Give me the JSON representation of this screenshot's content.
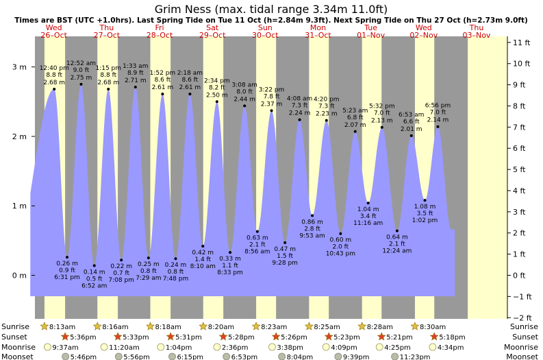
{
  "chart_data": {
    "type": "area",
    "title": "Grim Ness (max. tidal range 3.34m 11.0ft)",
    "subtitle": "Times are BST (UTC +1.0hrs). Last Spring Tide on Tue 11 Oct (h=2.84m 9.3ft). Next Spring Tide on Thu 27 Oct (h=2.73m 9.0ft)",
    "days": [
      {
        "day": "Wed",
        "date": "26–Oct"
      },
      {
        "day": "Thu",
        "date": "27–Oct"
      },
      {
        "day": "Fri",
        "date": "28–Oct"
      },
      {
        "day": "Sat",
        "date": "29–Oct"
      },
      {
        "day": "Sun",
        "date": "30–Oct"
      },
      {
        "day": "Mon",
        "date": "31–Oct"
      },
      {
        "day": "Tue",
        "date": "01–Nov"
      },
      {
        "day": "Wed",
        "date": "02–Nov"
      },
      {
        "day": "Thu",
        "date": "03–Nov"
      }
    ],
    "x_unit": "hours since 00:00 on Wed 26-Oct",
    "ylim_m": [
      -0.28,
      3.38
    ],
    "left_ticks": [
      {
        "v": 0,
        "label": "0 m"
      },
      {
        "v": 1,
        "label": "1 m"
      },
      {
        "v": 2,
        "label": "2 m"
      },
      {
        "v": 3,
        "label": "3 m"
      }
    ],
    "right_ticks": [
      {
        "ft": -2,
        "label": "−2 ft"
      },
      {
        "ft": -1,
        "label": "−1 ft"
      },
      {
        "ft": 0,
        "label": "0 ft"
      },
      {
        "ft": 1,
        "label": "1 ft"
      },
      {
        "ft": 2,
        "label": "2 ft"
      },
      {
        "ft": 3,
        "label": "3 ft"
      },
      {
        "ft": 4,
        "label": "4 ft"
      },
      {
        "ft": 5,
        "label": "5 ft"
      },
      {
        "ft": 6,
        "label": "6 ft"
      },
      {
        "ft": 7,
        "label": "7 ft"
      },
      {
        "ft": 8,
        "label": "8 ft"
      },
      {
        "ft": 9,
        "label": "9 ft"
      },
      {
        "ft": 10,
        "label": "10 ft"
      },
      {
        "ft": 11,
        "label": "11 ft"
      }
    ],
    "tides": [
      {
        "type": "low",
        "h": 0.1,
        "t": -7.0
      },
      {
        "type": "high",
        "time": "12:40 pm",
        "ft": "8.8 ft",
        "m": "2.68 m",
        "h": 2.68,
        "t": 12.67
      },
      {
        "type": "low",
        "time": "6:31 pm",
        "ft": "0.9 ft",
        "m": "0.26 m",
        "h": 0.26,
        "t": 18.52
      },
      {
        "type": "high",
        "time": "12:52 am",
        "ft": "9.0 ft",
        "m": "2.75 m",
        "h": 2.75,
        "t": 24.87
      },
      {
        "type": "low",
        "time": "6:52 am",
        "ft": "0.5 ft",
        "m": "0.14 m",
        "h": 0.14,
        "t": 30.87
      },
      {
        "type": "high",
        "time": "1:15 pm",
        "ft": "8.8 ft",
        "m": "2.68 m",
        "h": 2.68,
        "t": 37.25
      },
      {
        "type": "low",
        "time": "7:08 pm",
        "ft": "0.7 ft",
        "m": "0.22 m",
        "h": 0.22,
        "t": 43.13
      },
      {
        "type": "high",
        "time": "1:33 am",
        "ft": "8.9 ft",
        "m": "2.71 m",
        "h": 2.71,
        "t": 49.55
      },
      {
        "type": "low",
        "time": "7:29 am",
        "ft": "0.8 ft",
        "m": "0.25 m",
        "h": 0.25,
        "t": 55.48
      },
      {
        "type": "high",
        "time": "1:52 pm",
        "ft": "8.6 ft",
        "m": "2.61 m",
        "h": 2.61,
        "t": 61.87
      },
      {
        "type": "low",
        "time": "7:48 pm",
        "ft": "0.8 ft",
        "m": "0.24 m",
        "h": 0.24,
        "t": 67.8
      },
      {
        "type": "high",
        "time": "2:18 am",
        "ft": "8.6 ft",
        "m": "2.61 m",
        "h": 2.61,
        "t": 74.3
      },
      {
        "type": "low",
        "time": "8:10 am",
        "ft": "1.4 ft",
        "m": "0.42 m",
        "h": 0.42,
        "t": 80.17
      },
      {
        "type": "high",
        "time": "2:34 pm",
        "ft": "8.2 ft",
        "m": "2.50 m",
        "h": 2.5,
        "t": 86.57
      },
      {
        "type": "low",
        "time": "8:33 pm",
        "ft": "1.1 ft",
        "m": "0.33 m",
        "h": 0.33,
        "t": 92.55
      },
      {
        "type": "high",
        "time": "3:08 am",
        "ft": "8.0 ft",
        "m": "2.44 m",
        "h": 2.44,
        "t": 99.13
      },
      {
        "type": "low",
        "time": "8:56 am",
        "ft": "2.1 ft",
        "m": "0.63 m",
        "h": 0.63,
        "t": 104.93
      },
      {
        "type": "high",
        "time": "3:22 pm",
        "ft": "7.8 ft",
        "m": "2.37 m",
        "h": 2.37,
        "t": 111.37
      },
      {
        "type": "low",
        "time": "9:28 pm",
        "ft": "1.5 ft",
        "m": "0.47 m",
        "h": 0.47,
        "t": 117.47
      },
      {
        "type": "high",
        "time": "4:08 am",
        "ft": "7.3 ft",
        "m": "2.24 m",
        "h": 2.24,
        "t": 124.13
      },
      {
        "type": "low",
        "time": "9:53 am",
        "ft": "2.8 ft",
        "m": "0.86 m",
        "h": 0.86,
        "t": 129.88
      },
      {
        "type": "high",
        "time": "4:20 pm",
        "ft": "7.3 ft",
        "m": "2.23 m",
        "h": 2.23,
        "t": 136.33
      },
      {
        "type": "low",
        "time": "10:43 pm",
        "ft": "2.0 ft",
        "m": "0.60 m",
        "h": 0.6,
        "t": 142.72
      },
      {
        "type": "high",
        "time": "5:23 am",
        "ft": "6.8 ft",
        "m": "2.07 m",
        "h": 2.07,
        "t": 149.38
      },
      {
        "type": "low",
        "time": "11:16 am",
        "ft": "3.4 ft",
        "m": "1.04 m",
        "h": 1.04,
        "t": 155.27
      },
      {
        "type": "high",
        "time": "5:32 pm",
        "ft": "7.0 ft",
        "m": "2.13 m",
        "h": 2.13,
        "t": 161.53
      },
      {
        "type": "low",
        "time": "12:24 am",
        "ft": "2.1 ft",
        "m": "0.64 m",
        "h": 0.64,
        "t": 168.4
      },
      {
        "type": "high",
        "time": "6:53 am",
        "ft": "6.6 ft",
        "m": "2.01 m",
        "h": 2.01,
        "t": 174.88
      },
      {
        "type": "low",
        "time": "1:02 pm",
        "ft": "3.5 ft",
        "m": "1.08 m",
        "h": 1.08,
        "t": 181.03
      },
      {
        "type": "high",
        "time": "6:56 pm",
        "ft": "7.0 ft",
        "m": "2.14 m",
        "h": 2.14,
        "t": 186.93
      },
      {
        "type": "low",
        "h": 0.66,
        "t": 193.0
      }
    ],
    "sun": [
      {
        "sunrise": "8:13am",
        "sunset": "5:36pm",
        "sunrise_h": 8.22,
        "sunset_h": 17.6
      },
      {
        "sunrise": "8:16am",
        "sunset": "5:33pm",
        "sunrise_h": 8.27,
        "sunset_h": 17.55
      },
      {
        "sunrise": "8:18am",
        "sunset": "5:31pm",
        "sunrise_h": 8.3,
        "sunset_h": 17.52
      },
      {
        "sunrise": "8:20am",
        "sunset": "5:28pm",
        "sunrise_h": 8.33,
        "sunset_h": 17.47
      },
      {
        "sunrise": "8:23am",
        "sunset": "5:26pm",
        "sunrise_h": 8.38,
        "sunset_h": 17.43
      },
      {
        "sunrise": "8:25am",
        "sunset": "5:23pm",
        "sunrise_h": 8.42,
        "sunset_h": 17.38
      },
      {
        "sunrise": "8:28am",
        "sunset": "5:21pm",
        "sunrise_h": 8.47,
        "sunset_h": 17.35
      },
      {
        "sunrise": "8:30am",
        "sunset": "5:18pm",
        "sunrise_h": 8.5,
        "sunset_h": 17.3
      }
    ],
    "moonrise": [
      {
        "time": "9:37am",
        "t": 9.62
      },
      {
        "time": "11:20am",
        "t": 35.33
      },
      {
        "time": "1:04pm",
        "t": 61.07
      },
      {
        "time": "2:36pm",
        "t": 86.6
      },
      {
        "time": "3:38pm",
        "t": 111.63
      },
      {
        "time": "4:09pm",
        "t": 136.15
      },
      {
        "time": "4:25pm",
        "t": 160.42
      },
      {
        "time": "4:34pm",
        "t": 184.57
      }
    ],
    "moonset": [
      {
        "time": "5:46pm",
        "t": 17.77
      },
      {
        "time": "5:56pm",
        "t": 41.93
      },
      {
        "time": "6:15pm",
        "t": 66.25
      },
      {
        "time": "6:53pm",
        "t": 90.88
      },
      {
        "time": "8:04pm",
        "t": 116.07
      },
      {
        "time": "9:39pm",
        "t": 141.65
      },
      {
        "time": "11:23pm",
        "t": 167.38
      }
    ],
    "row_labels": {
      "sunrise": "Sunrise",
      "sunset": "Sunset",
      "moonrise": "Moonrise",
      "moonset": "Moonset"
    },
    "colors": {
      "night": "#999999",
      "day": "#ffffcc",
      "tide": "#9999ff",
      "day_text": "#cc0000",
      "star_rise": "#e0c040",
      "star_set": "#dd4422",
      "moon": "#ffffcc",
      "moon_set": "#bbbbaa"
    }
  }
}
